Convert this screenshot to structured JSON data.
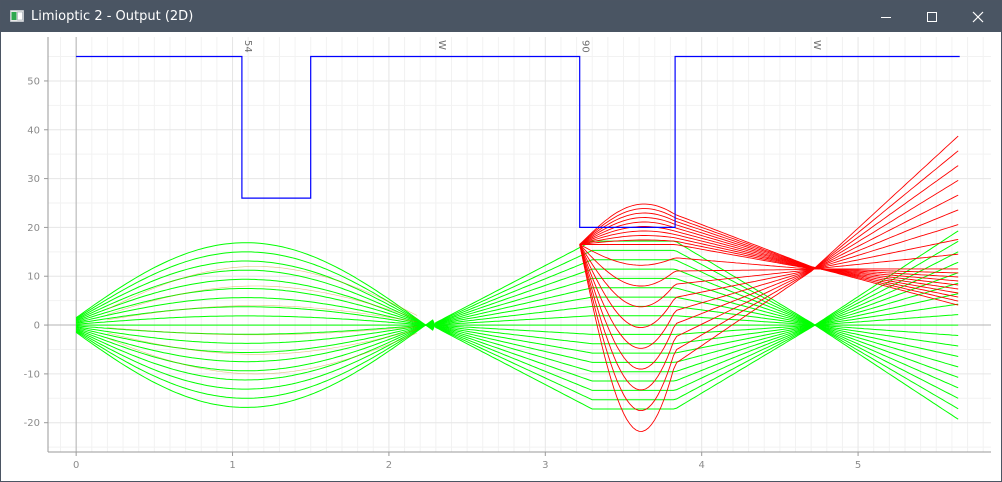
{
  "window": {
    "title": "Limioptic 2 - Output (2D)",
    "icon": "limioptic-app-icon",
    "controls": [
      "minimize-icon",
      "maximize-icon",
      "close-icon"
    ]
  },
  "chart_data": {
    "type": "line",
    "title": "",
    "xlabel": "",
    "ylabel": "",
    "xlim": [
      -0.18,
      5.85
    ],
    "ylim": [
      -26,
      59
    ],
    "grid": true,
    "x_ticks": [
      0,
      1,
      2,
      3,
      4,
      5
    ],
    "y_ticks": [
      -20,
      -10,
      0,
      10,
      20,
      30,
      40,
      50
    ],
    "colors": {
      "aperture": "#0000ff",
      "beam_a": "#00ff00",
      "beam_b": "#ff0000",
      "grid": "#e6e6e6",
      "minor_grid": "#f2f2f2",
      "axis": "#b3b3b3"
    },
    "element_labels": [
      {
        "x": 1.06,
        "text": "54"
      },
      {
        "x": 2.3,
        "text": "W"
      },
      {
        "x": 3.22,
        "text": "90"
      },
      {
        "x": 4.7,
        "text": "W"
      }
    ],
    "aperture": {
      "x": [
        0,
        1.06,
        1.06,
        1.5,
        1.5,
        3.22,
        3.22,
        3.83,
        3.83,
        5.65
      ],
      "y": [
        55,
        55,
        26,
        26,
        55,
        55,
        20,
        20,
        55,
        55
      ]
    },
    "beam_green": {
      "ray_count": 19,
      "waist_x": [
        0,
        2.3,
        4.7
      ],
      "envelope": {
        "x": [
          0,
          1.25,
          2.3,
          3.3,
          3.83,
          4.7,
          5.65
        ],
        "half_width": [
          1.5,
          16.8,
          0.5,
          17.2,
          17.2,
          0.5,
          19.5
        ]
      }
    },
    "beam_red": {
      "ray_count": 19,
      "focus": {
        "x": 4.7,
        "y": 11.5
      },
      "envelope": {
        "x": [
          3.22,
          3.5,
          3.83,
          4.7,
          5.65
        ],
        "upper": [
          16.5,
          23.8,
          18.0,
          12.0,
          39.0
        ],
        "lower": [
          16.5,
          -21.8,
          -13.0,
          11.0,
          4.0
        ]
      }
    }
  }
}
